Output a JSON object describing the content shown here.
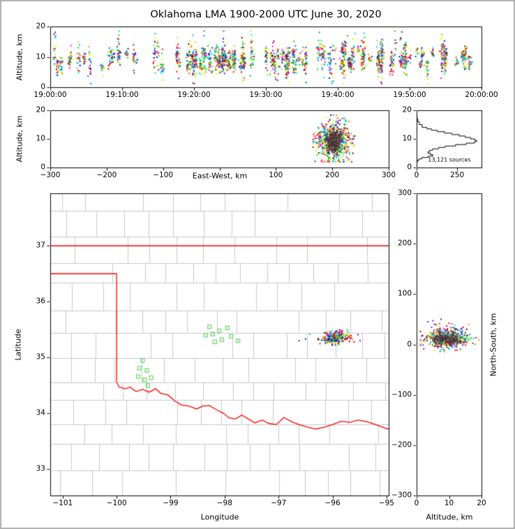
{
  "title": "Oklahoma LMA 1900-2000 UTC June 30, 2020",
  "colors": {
    "palette": [
      "#0000cd",
      "#0040ff",
      "#0080ff",
      "#00bfff",
      "#00e5ee",
      "#00cd66",
      "#00e000",
      "#66ff33",
      "#bfff00",
      "#ffff00",
      "#ffc800",
      "#ff8c00",
      "#ff4500",
      "#ff0000",
      "#c00000",
      "#800000",
      "#ff00ff",
      "#9400d3"
    ],
    "county": "#c9c9c9",
    "state": "#ff0000",
    "station": "#63d663",
    "frame": "#000000",
    "curve": "#000000",
    "border": "#b0b0b0"
  },
  "chart_data": [
    {
      "id": "time_height",
      "type": "scatter",
      "xlabel": "",
      "ylabel": "Altitude, km",
      "xlim": [
        0,
        60
      ],
      "x_ticks": [
        0,
        10,
        20,
        30,
        40,
        50,
        60
      ],
      "x_tick_labels": [
        "19:00:00",
        "19:10:00",
        "19:20:00",
        "19:30:00",
        "19:40:00",
        "19:50:00",
        "20:00:00"
      ],
      "ylim": [
        0,
        20
      ],
      "y_ticks": [
        0,
        10,
        20
      ],
      "y_tick_labels": [
        "0",
        "10",
        "20"
      ],
      "gen": {
        "seed": 7,
        "base_events": 80,
        "t_range": [
          0.3,
          59.7
        ],
        "extra": [
          {
            "range": [
              19,
              27
            ],
            "n": 34
          },
          {
            "range": [
              30,
              52
            ],
            "n": 40
          }
        ],
        "alt_mean": 9.2,
        "center_sigma": 1.8,
        "spread_min": 0.6,
        "spread_var": 2.6,
        "alt_clip": [
          1.2,
          18.5
        ],
        "pts_min": 4,
        "pts_max": 28
      }
    },
    {
      "id": "ew_height",
      "type": "scatter",
      "xlabel": "East-West, km",
      "ylabel": "Altitude, km",
      "xlim": [
        -300,
        300
      ],
      "x_ticks": [
        -300,
        -200,
        -100,
        0,
        100,
        200,
        300
      ],
      "x_tick_labels": [
        "−300",
        "−200",
        "−100",
        "",
        "100",
        "200",
        "300"
      ],
      "ylim": [
        0,
        20
      ],
      "y_ticks": [
        0,
        10,
        20
      ],
      "y_tick_labels": [
        "0",
        "10",
        "20"
      ],
      "gen": {
        "seed": 11,
        "n": 750,
        "x_mean": 202,
        "x_sigma": 14,
        "x_clip": [
          166,
          240
        ],
        "y_mean": 9.3,
        "y_sigma": 3.1,
        "y_clip": [
          2,
          18.3
        ],
        "core_n": 320,
        "core_x_sigma": 6,
        "core_y_sigma": 1.7,
        "core_colors": [
          "#3a3a3a",
          "#5a5a5a",
          "#7a2020",
          "#262626",
          "#6e6e6e"
        ]
      }
    },
    {
      "id": "alt_histogram",
      "type": "line",
      "xlabel": "",
      "ylabel": "",
      "annotation": "13,121 sources",
      "xlim": [
        0,
        400
      ],
      "x_ticks": [
        0,
        250
      ],
      "x_tick_labels": [
        "0",
        "250"
      ],
      "ylim": [
        0,
        20
      ],
      "y_ticks": [
        0,
        10,
        20
      ],
      "y_tick_labels": [
        "0",
        "10",
        "20"
      ],
      "curve": {
        "altitude_km": [
          0,
          1.5,
          2,
          2.5,
          3,
          3.5,
          4,
          4.5,
          5,
          5.5,
          6,
          6.5,
          7,
          7.5,
          8,
          8.5,
          9,
          9.5,
          10,
          10.5,
          11,
          11.5,
          12,
          12.5,
          13,
          13.5,
          14,
          15,
          16,
          17,
          18,
          20
        ],
        "source_count": [
          0,
          0,
          2,
          6,
          14,
          32,
          72,
          100,
          86,
          70,
          80,
          98,
          135,
          175,
          240,
          305,
          355,
          370,
          358,
          332,
          300,
          262,
          218,
          172,
          128,
          92,
          64,
          34,
          16,
          7,
          3,
          0
        ]
      }
    },
    {
      "id": "map",
      "type": "scatter",
      "xlabel": "Longitude",
      "ylabel": "Latitude",
      "xlim": [
        -101.23,
        -94.96
      ],
      "x_ticks": [
        -101,
        -100,
        -99,
        -98,
        -97,
        -96,
        -95
      ],
      "x_tick_labels": [
        "−101",
        "−100",
        "−99",
        "−98",
        "−97",
        "−96",
        "−95"
      ],
      "ylim": [
        32.53,
        37.94
      ],
      "y_ticks": [
        33,
        34,
        35,
        36,
        37
      ],
      "y_tick_labels": [
        "33",
        "34",
        "35",
        "36",
        "37"
      ],
      "state_border": {
        "north": [
          [
            -101.23,
            37
          ],
          [
            -94.96,
            37
          ]
        ],
        "panhandle_south": [
          [
            -101.23,
            36.5
          ],
          [
            -100.0,
            36.5
          ]
        ],
        "west": [
          [
            -100.0,
            36.5
          ],
          [
            -100.0,
            34.56
          ]
        ],
        "red_river": [
          [
            -100.0,
            34.56
          ],
          [
            -99.95,
            34.47
          ],
          [
            -99.84,
            34.44
          ],
          [
            -99.75,
            34.47
          ],
          [
            -99.64,
            34.39
          ],
          [
            -99.52,
            34.43
          ],
          [
            -99.4,
            34.38
          ],
          [
            -99.28,
            34.44
          ],
          [
            -99.18,
            34.36
          ],
          [
            -99.05,
            34.33
          ],
          [
            -98.92,
            34.22
          ],
          [
            -98.8,
            34.15
          ],
          [
            -98.66,
            34.13
          ],
          [
            -98.52,
            34.08
          ],
          [
            -98.4,
            34.13
          ],
          [
            -98.28,
            34.14
          ],
          [
            -98.14,
            34.06
          ],
          [
            -98.02,
            34.0
          ],
          [
            -97.92,
            33.92
          ],
          [
            -97.8,
            33.9
          ],
          [
            -97.68,
            33.97
          ],
          [
            -97.56,
            33.9
          ],
          [
            -97.44,
            33.83
          ],
          [
            -97.3,
            33.88
          ],
          [
            -97.18,
            33.82
          ],
          [
            -97.04,
            33.8
          ],
          [
            -96.9,
            33.93
          ],
          [
            -96.76,
            33.85
          ],
          [
            -96.62,
            33.8
          ],
          [
            -96.48,
            33.76
          ],
          [
            -96.32,
            33.72
          ],
          [
            -96.16,
            33.75
          ],
          [
            -96.0,
            33.8
          ],
          [
            -95.84,
            33.86
          ],
          [
            -95.68,
            33.84
          ],
          [
            -95.52,
            33.88
          ],
          [
            -95.36,
            33.85
          ],
          [
            -95.2,
            33.8
          ],
          [
            -95.04,
            33.74
          ],
          [
            -94.96,
            33.72
          ]
        ]
      },
      "stations": [
        [
          -99.52,
          34.95
        ],
        [
          -99.58,
          34.81
        ],
        [
          -99.44,
          34.77
        ],
        [
          -99.6,
          34.66
        ],
        [
          -99.48,
          34.6
        ],
        [
          -99.36,
          34.64
        ],
        [
          -99.42,
          34.5
        ],
        [
          -98.28,
          35.55
        ],
        [
          -98.35,
          35.4
        ],
        [
          -98.22,
          35.42
        ],
        [
          -98.1,
          35.48
        ],
        [
          -97.95,
          35.53
        ],
        [
          -98.05,
          35.32
        ],
        [
          -97.88,
          35.38
        ],
        [
          -98.18,
          35.28
        ],
        [
          -97.75,
          35.3
        ]
      ],
      "counties_gen": {
        "seed": 5,
        "row_min": 0.3,
        "row_var": 0.22,
        "col_min": 0.36,
        "col_var": 0.26
      },
      "gen": {
        "seed": 23,
        "n": 340,
        "lon_mean": -95.95,
        "lon_sigma": 0.11,
        "lat_mean": 35.36,
        "lat_sigma": 0.05,
        "lon_clip": [
          -96.35,
          -95.6
        ],
        "lat_clip": [
          35.2,
          35.52
        ],
        "outliers": [
          [
            -96.5,
            35.33,
            "#2222dd"
          ],
          [
            -96.62,
            35.3,
            "#2222dd"
          ],
          [
            -95.53,
            35.41,
            "#9400d3"
          ],
          [
            -95.49,
            35.3,
            "#9400d3"
          ],
          [
            -96.42,
            35.42,
            "#00bfff"
          ]
        ]
      }
    },
    {
      "id": "ns_height",
      "type": "scatter",
      "xlabel": "Altitude, km",
      "ylabel": "North-South, km",
      "xlim": [
        0,
        20
      ],
      "x_ticks": [
        0,
        10,
        20
      ],
      "x_tick_labels": [
        "0",
        "10",
        "20"
      ],
      "ylim": [
        -300,
        300
      ],
      "y_ticks": [
        300,
        200,
        100,
        0,
        -100,
        -200,
        -300
      ],
      "y_tick_labels": [
        "300",
        "200",
        "100",
        "0",
        "−100",
        "−200",
        "−300"
      ],
      "gen": {
        "seed": 31,
        "n": 500,
        "alt_mean": 9.5,
        "alt_sigma": 3.3,
        "alt_clip": [
          1.2,
          19.2
        ],
        "ns_mean": 13,
        "ns_sigma": 11,
        "ns_clip": [
          -14,
          42
        ],
        "core_n": 220,
        "core_alt_sigma": 2.4,
        "core_ns_sigma": 5,
        "core_colors": [
          "#3a3a3a",
          "#5a5a5a",
          "#7a2020",
          "#262626",
          "#6e6e6e"
        ],
        "outliers": [
          [
            5,
            47,
            "#9400d3"
          ],
          [
            7.5,
            50,
            "#9400d3"
          ],
          [
            3.5,
            45,
            "#9400d3"
          ]
        ]
      }
    }
  ]
}
